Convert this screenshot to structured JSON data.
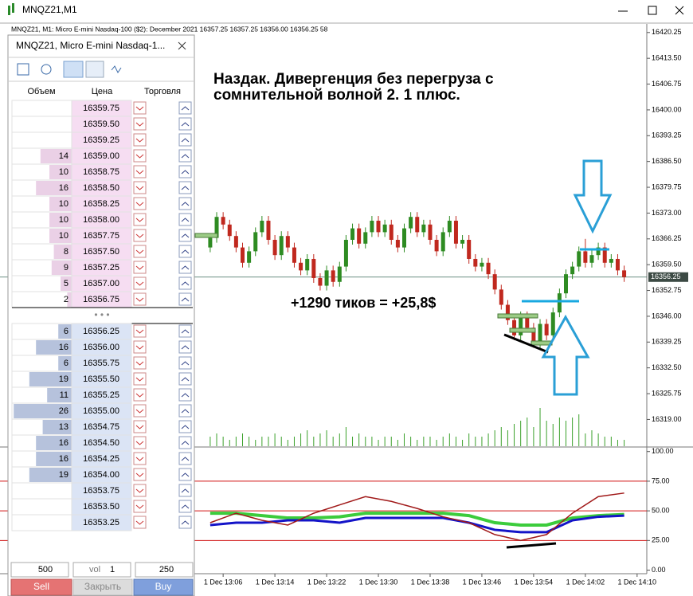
{
  "window": {
    "title": "MNQZ21,M1"
  },
  "dom": {
    "title": "MNQZ21, Micro E-mini Nasdaq-1...",
    "columns": [
      "Объем",
      "Цена",
      "Торговля"
    ],
    "ask_rows": [
      {
        "price": "16359.75"
      },
      {
        "price": "16359.50"
      },
      {
        "price": "16359.25"
      },
      {
        "price": "16359.00",
        "volume": 14
      },
      {
        "price": "16358.75",
        "volume": 10
      },
      {
        "price": "16358.50",
        "volume": 16
      },
      {
        "price": "16358.25",
        "volume": 10
      },
      {
        "price": "16358.00",
        "volume": 10
      },
      {
        "price": "16357.75",
        "volume": 10
      },
      {
        "price": "16357.50",
        "volume": 8
      },
      {
        "price": "16357.25",
        "volume": 9
      },
      {
        "price": "16357.00",
        "volume": 5
      },
      {
        "price": "16356.75",
        "volume": 2
      }
    ],
    "separator": "• • •",
    "bid_rows": [
      {
        "price": "16356.25",
        "volume": 6
      },
      {
        "price": "16356.00",
        "volume": 16
      },
      {
        "price": "16355.75",
        "volume": 6
      },
      {
        "price": "16355.50",
        "volume": 19
      },
      {
        "price": "16355.25",
        "volume": 11
      },
      {
        "price": "16355.00",
        "volume": 26
      },
      {
        "price": "16354.75",
        "volume": 13
      },
      {
        "price": "16354.50",
        "volume": 16
      },
      {
        "price": "16354.25",
        "volume": 16
      },
      {
        "price": "16354.00",
        "volume": 19
      },
      {
        "price": "16353.75"
      },
      {
        "price": "16353.50"
      },
      {
        "price": "16353.25"
      }
    ],
    "controls": {
      "lot": "500",
      "mode": "vol",
      "volume": "1",
      "depth": "250"
    },
    "buttons": {
      "sell": "Sell",
      "close": "Закрыть",
      "buy": "Buy"
    }
  },
  "chart_data": [
    {
      "type": "candlestick",
      "subtitle": "MNQZ21, M1:  Micro E-mini Nasdaq-100 ($2): December 2021  16357.25 16357.25 16356.00 16356.25  58",
      "annotations": [
        "Наздак. Дивергенция без перегруза с",
        "сомнительной волной 2. 1 плюс.",
        "+1290 тиков = +25,8$"
      ],
      "up_color": "#2e8b22",
      "down_color": "#c0281e",
      "volume_color": "#3aa02a",
      "xlim": [
        -32.5,
        67.5
      ],
      "ylim": [
        16312,
        16422.5
      ],
      "yticks": [
        {
          "value": 16420.25,
          "label": "16420.25"
        },
        {
          "value": 16413.5,
          "label": "16413.50"
        },
        {
          "value": 16406.75,
          "label": "16406.75"
        },
        {
          "value": 16400,
          "label": "16400.00"
        },
        {
          "value": 16393.25,
          "label": "16393.25"
        },
        {
          "value": 16386.5,
          "label": "16386.50"
        },
        {
          "value": 16379.75,
          "label": "16379.75"
        },
        {
          "value": 16373,
          "label": "16373.00"
        },
        {
          "value": 16366.25,
          "label": "16366.25"
        },
        {
          "value": 16359.5,
          "label": "16359.50"
        },
        {
          "value": 16352.75,
          "label": "16352.75"
        },
        {
          "value": 16346,
          "label": "16346.00"
        },
        {
          "value": 16339.25,
          "label": "16339.25"
        },
        {
          "value": 16332.5,
          "label": "16332.50"
        },
        {
          "value": 16325.75,
          "label": "16325.75"
        },
        {
          "value": 16319,
          "label": "16319.00"
        }
      ],
      "last_price": {
        "value": 16356.25,
        "label": "16356.25"
      },
      "candles": [
        [
          16364,
          16367.75,
          16362.75,
          16366.5
        ],
        [
          16366.5,
          16373.25,
          16365.25,
          16372
        ],
        [
          16372,
          16373.25,
          16368.75,
          16370
        ],
        [
          16370,
          16371.25,
          16365.75,
          16367
        ],
        [
          16367,
          16368.25,
          16362.75,
          16364
        ],
        [
          16364,
          16365.25,
          16358.75,
          16360
        ],
        [
          16360,
          16364.25,
          16358.75,
          16363
        ],
        [
          16363,
          16369.25,
          16361.75,
          16368
        ],
        [
          16368,
          16372.25,
          16366.75,
          16371
        ],
        [
          16371,
          16372.25,
          16364.75,
          16366
        ],
        [
          16366,
          16367.25,
          16360.75,
          16362
        ],
        [
          16362,
          16368.25,
          16360.75,
          16367
        ],
        [
          16367,
          16368.25,
          16362.75,
          16364
        ],
        [
          16364,
          16365.25,
          16358.75,
          16360
        ],
        [
          16360,
          16361.25,
          16356.75,
          16358
        ],
        [
          16358,
          16362.25,
          16356.75,
          16361
        ],
        [
          16361,
          16362.25,
          16354.75,
          16356
        ],
        [
          16356,
          16357.25,
          16352.75,
          16354
        ],
        [
          16354,
          16359.25,
          16352.75,
          16358
        ],
        [
          16358,
          16359.25,
          16353.75,
          16355
        ],
        [
          16355,
          16360.25,
          16353.75,
          16359
        ],
        [
          16359,
          16367.25,
          16357.75,
          16366
        ],
        [
          16366,
          16370.25,
          16364.75,
          16369
        ],
        [
          16369,
          16370.25,
          16363.75,
          16365
        ],
        [
          16365,
          16369.25,
          16363.75,
          16368
        ],
        [
          16368,
          16372.25,
          16366.75,
          16371
        ],
        [
          16371,
          16372.25,
          16366.75,
          16368
        ],
        [
          16368,
          16371.25,
          16366.75,
          16370
        ],
        [
          16370,
          16371.25,
          16364.75,
          16366
        ],
        [
          16366,
          16367.25,
          16362.75,
          16364
        ],
        [
          16364,
          16370.25,
          16362.75,
          16369
        ],
        [
          16369,
          16373.25,
          16367.75,
          16372
        ],
        [
          16372,
          16373.25,
          16366.75,
          16368
        ],
        [
          16368,
          16371.25,
          16366.75,
          16370
        ],
        [
          16370,
          16371.25,
          16364.75,
          16366
        ],
        [
          16366,
          16367.25,
          16361.75,
          16363
        ],
        [
          16363,
          16369.25,
          16361.75,
          16368
        ],
        [
          16368,
          16372.25,
          16366.75,
          16371
        ],
        [
          16371,
          16372.25,
          16363.75,
          16365
        ],
        [
          16365,
          16367.25,
          16363.75,
          16366
        ],
        [
          16366,
          16367.25,
          16359.75,
          16361
        ],
        [
          16361,
          16362.25,
          16357.75,
          16359
        ],
        [
          16359,
          16361.25,
          16357.75,
          16360
        ],
        [
          16360,
          16361.25,
          16355.75,
          16357
        ],
        [
          16357,
          16358.25,
          16351.75,
          16353
        ],
        [
          16353,
          16354.25,
          16347.75,
          16349
        ],
        [
          16349,
          16350.25,
          16343.75,
          16345
        ],
        [
          16345,
          16346.25,
          16339.75,
          16341
        ],
        [
          16341,
          16347.25,
          16339.75,
          16346
        ],
        [
          16346,
          16347.25,
          16341.75,
          16343
        ],
        [
          16343,
          16344.25,
          16337.75,
          16339
        ],
        [
          16339,
          16345.25,
          16337.75,
          16344
        ],
        [
          16344,
          16345.25,
          16339.75,
          16341
        ],
        [
          16341,
          16348.25,
          16339.75,
          16347
        ],
        [
          16347,
          16353.25,
          16345.75,
          16352
        ],
        [
          16352,
          16358.25,
          16350.75,
          16357
        ],
        [
          16357,
          16360.25,
          16355.75,
          16359
        ],
        [
          16359,
          16364.25,
          16357.75,
          16363
        ],
        [
          16363,
          16366.25,
          16358.75,
          16360
        ],
        [
          16360,
          16363.25,
          16358.75,
          16362
        ],
        [
          16362,
          16365.25,
          16360.75,
          16364
        ],
        [
          16364,
          16365.25,
          16358.75,
          16360
        ],
        [
          16360,
          16362.25,
          16358.75,
          16361
        ],
        [
          16361,
          16362.25,
          16356.75,
          16358
        ],
        [
          16358,
          16359.25,
          16355,
          16356.25
        ]
      ],
      "volumes": [
        3,
        4,
        3,
        2,
        3,
        4,
        3,
        2,
        3,
        3,
        4,
        3,
        2,
        3,
        4,
        5,
        3,
        4,
        5,
        3,
        4,
        6,
        3,
        4,
        3,
        3,
        2,
        3,
        3,
        2,
        4,
        3,
        2,
        3,
        3,
        2,
        3,
        4,
        3,
        2,
        4,
        3,
        3,
        4,
        5,
        6,
        5,
        7,
        8,
        9,
        6,
        12,
        8,
        7,
        9,
        8,
        9,
        10,
        4,
        5,
        4,
        3,
        3,
        2,
        2
      ]
    },
    {
      "type": "line",
      "xlim": [
        -32.5,
        67.5
      ],
      "ylim": [
        -3,
        102.5
      ],
      "yticks": [
        {
          "value": 100,
          "label": "100.00"
        },
        {
          "value": 75,
          "label": "75.00"
        },
        {
          "value": 50,
          "label": "50.00"
        },
        {
          "value": 25,
          "label": "25.00"
        },
        {
          "value": 0,
          "label": "0.00"
        }
      ],
      "levels": [
        25,
        50,
        75
      ],
      "level_color": "#d01010",
      "xticks": [
        {
          "value": 2,
          "label": "1 Dec 13:06"
        },
        {
          "value": 10,
          "label": "1 Dec 13:14"
        },
        {
          "value": 18,
          "label": "1 Dec 13:22"
        },
        {
          "value": 26,
          "label": "1 Dec 13:30"
        },
        {
          "value": 34,
          "label": "1 Dec 13:38"
        },
        {
          "value": 42,
          "label": "1 Dec 13:46"
        },
        {
          "value": 50,
          "label": "1 Dec 13:54"
        },
        {
          "value": 58,
          "label": "1 Dec 14:02"
        },
        {
          "value": 66,
          "label": "1 Dec 14:10"
        }
      ],
      "x": [
        0,
        4,
        8,
        12,
        16,
        20,
        24,
        28,
        32,
        36,
        40,
        44,
        48,
        52,
        56,
        60,
        64
      ],
      "series": [
        {
          "color": "#3ccc3c",
          "line_width": 4,
          "values": [
            48,
            48,
            46,
            44,
            44,
            45,
            48,
            48,
            48,
            48,
            46,
            40,
            38,
            38,
            44,
            46,
            47
          ]
        },
        {
          "color": "#1414c8",
          "line_width": 3,
          "values": [
            38,
            40,
            40,
            42,
            42,
            40,
            44,
            44,
            44,
            44,
            40,
            34,
            32,
            32,
            42,
            45,
            46
          ]
        },
        {
          "color": "#a01818",
          "line_width": 1.5,
          "values": [
            40,
            48,
            42,
            38,
            48,
            55,
            62,
            58,
            52,
            45,
            40,
            30,
            25,
            30,
            48,
            62,
            65
          ]
        }
      ]
    }
  ]
}
